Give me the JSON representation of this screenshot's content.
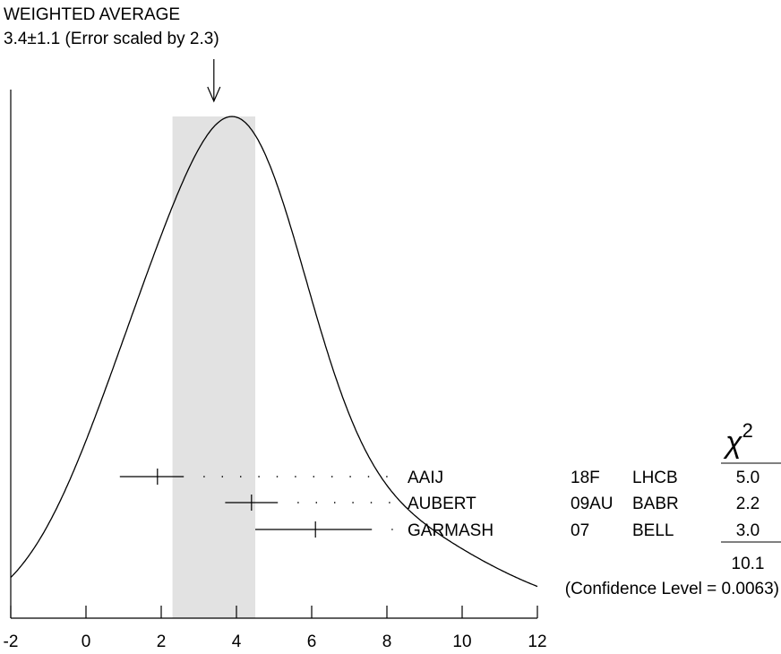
{
  "chart_data": {
    "type": "ideogram",
    "title_line1": "WEIGHTED AVERAGE",
    "title_line2": "3.4±1.1 (Error scaled by 2.3)",
    "average": 3.4,
    "average_error": 1.1,
    "error_scale": 2.3,
    "band": [
      2.3,
      4.5
    ],
    "xlim": [
      -2,
      12
    ],
    "xticks": [
      -2,
      0,
      2,
      4,
      6,
      8,
      10,
      12
    ],
    "measurements": [
      {
        "author": "AAIJ",
        "ref": "18F",
        "experiment": "LHCB",
        "value": 1.9,
        "low": 0.9,
        "high": 2.6,
        "chi2": "5.0"
      },
      {
        "author": "AUBERT",
        "ref": "09AU",
        "experiment": "BABR",
        "value": 4.4,
        "low": 3.7,
        "high": 5.1,
        "chi2": "2.2"
      },
      {
        "author": "GARMASH",
        "ref": "07",
        "experiment": "BELL",
        "value": 6.1,
        "low": 4.5,
        "high": 7.6,
        "chi2": "3.0"
      }
    ],
    "chi2_symbol": "χ",
    "chi2_power": "2",
    "chi2_total": "10.1",
    "confidence_text": "(Confidence Level = 0.0063)"
  }
}
